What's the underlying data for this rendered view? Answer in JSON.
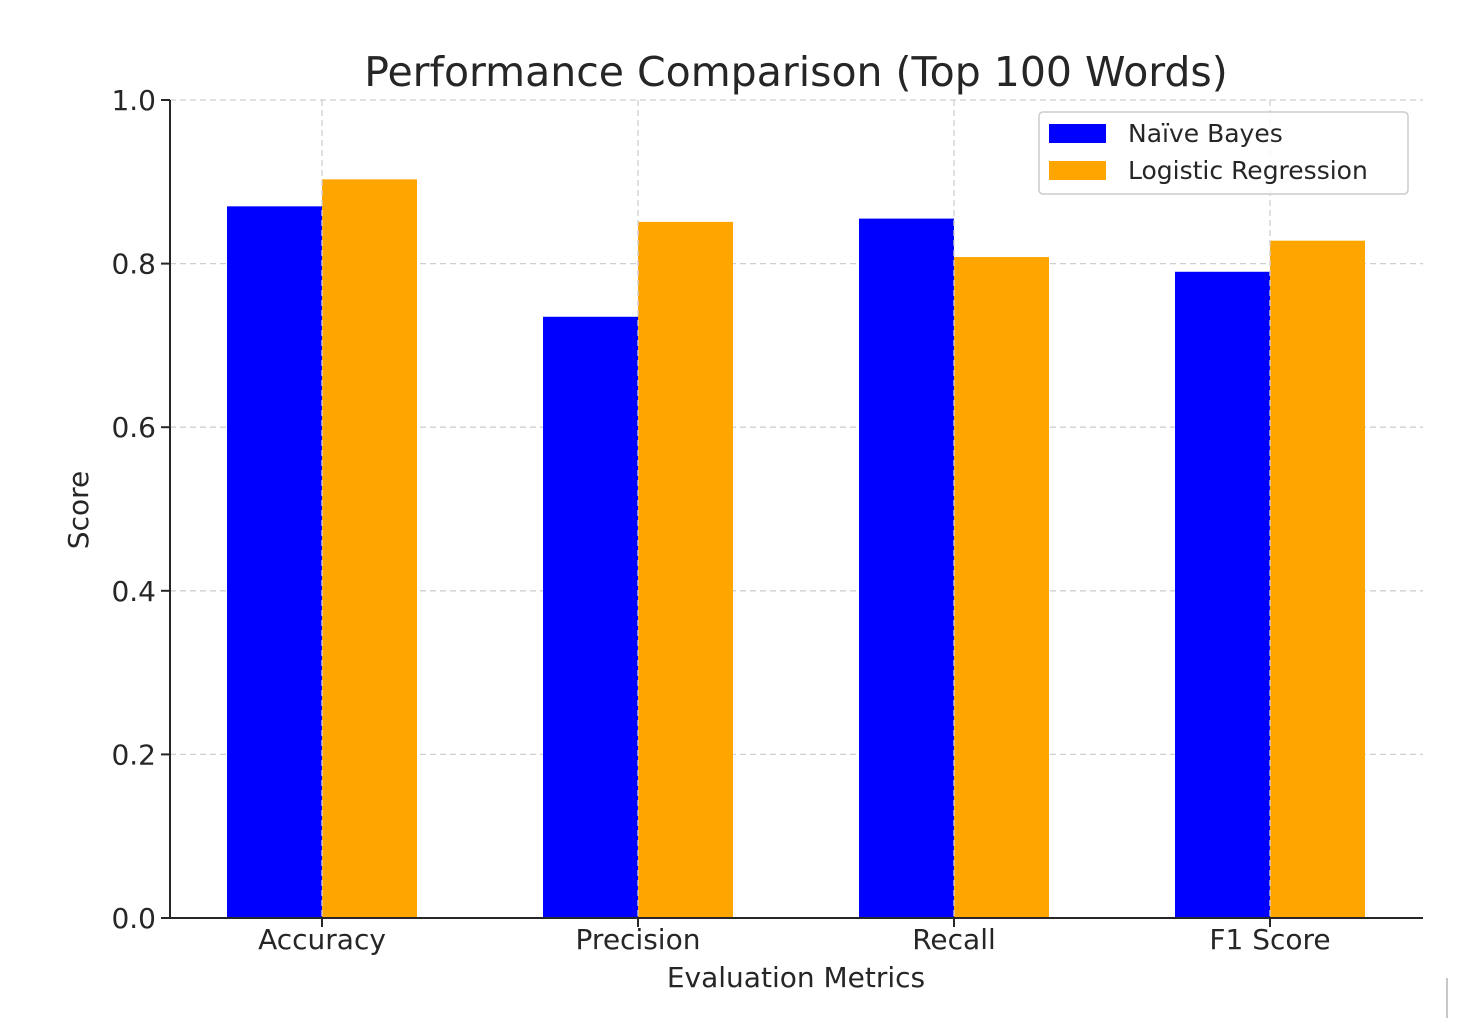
{
  "chart_data": {
    "type": "bar",
    "title": "Performance Comparison (Top 100 Words)",
    "xlabel": "Evaluation Metrics",
    "ylabel": "Score",
    "categories": [
      "Accuracy",
      "Precision",
      "Recall",
      "F1 Score"
    ],
    "series": [
      {
        "name": "Naïve Bayes",
        "color": "#0000ff",
        "values": [
          0.87,
          0.735,
          0.855,
          0.79
        ]
      },
      {
        "name": "Logistic Regression",
        "color": "#ffa500",
        "values": [
          0.903,
          0.851,
          0.808,
          0.828
        ]
      }
    ],
    "ylim": [
      0,
      1.0
    ],
    "yticks": [
      "0.0",
      "0.2",
      "0.4",
      "0.6",
      "0.8",
      "1.0"
    ],
    "grid": true,
    "legend_position": "top-right"
  }
}
